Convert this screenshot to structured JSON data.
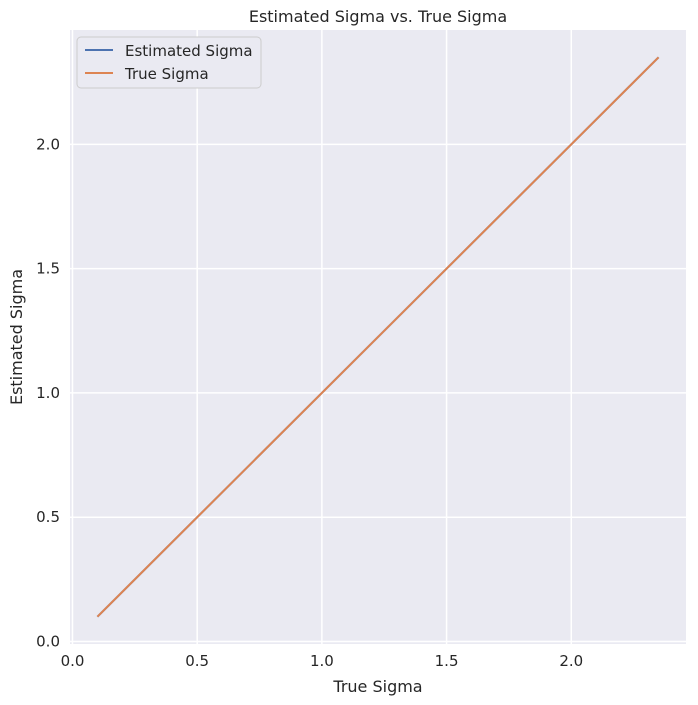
{
  "chart_data": {
    "type": "line",
    "title": "Estimated Sigma vs. True Sigma",
    "xlabel": "True Sigma",
    "ylabel": "Estimated Sigma",
    "xlim": [
      -0.01,
      2.46
    ],
    "ylim": [
      -0.01,
      2.46
    ],
    "xticks": [
      0.0,
      0.5,
      1.0,
      1.5,
      2.0
    ],
    "xtick_labels": [
      "0.0",
      "0.5",
      "1.0",
      "1.5",
      "2.0"
    ],
    "yticks": [
      0.0,
      0.5,
      1.0,
      1.5,
      2.0
    ],
    "ytick_labels": [
      "0.0",
      "0.5",
      "1.0",
      "1.5",
      "2.0"
    ],
    "grid": true,
    "legend_position": "top-left",
    "background": "#eaeaf2",
    "series": [
      {
        "name": "Estimated Sigma",
        "color": "#4c72b0",
        "x": [
          0.1,
          2.35
        ],
        "y": [
          0.1,
          2.35
        ]
      },
      {
        "name": "True Sigma",
        "color": "#dd8452",
        "x": [
          0.1,
          2.35
        ],
        "y": [
          0.1,
          2.35
        ]
      }
    ]
  }
}
